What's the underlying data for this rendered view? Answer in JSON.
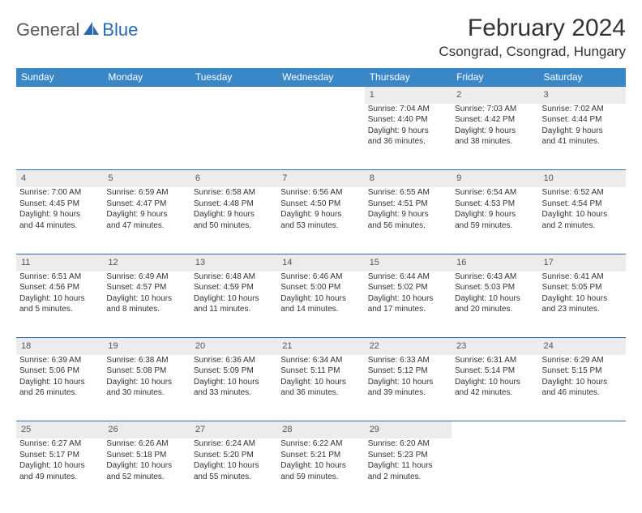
{
  "brand": {
    "part1": "General",
    "part2": "Blue"
  },
  "title": "February 2024",
  "location": "Csongrad, Csongrad, Hungary",
  "colors": {
    "header_bg": "#3a87c8",
    "header_text": "#ffffff",
    "rule": "#2a6ab0",
    "daynum_bg": "#ececec",
    "text": "#333333"
  },
  "day_headers": [
    "Sunday",
    "Monday",
    "Tuesday",
    "Wednesday",
    "Thursday",
    "Friday",
    "Saturday"
  ],
  "weeks": [
    {
      "nums": [
        "",
        "",
        "",
        "",
        "1",
        "2",
        "3"
      ],
      "cells": [
        null,
        null,
        null,
        null,
        {
          "sunrise": "Sunrise: 7:04 AM",
          "sunset": "Sunset: 4:40 PM",
          "day1": "Daylight: 9 hours",
          "day2": "and 36 minutes."
        },
        {
          "sunrise": "Sunrise: 7:03 AM",
          "sunset": "Sunset: 4:42 PM",
          "day1": "Daylight: 9 hours",
          "day2": "and 38 minutes."
        },
        {
          "sunrise": "Sunrise: 7:02 AM",
          "sunset": "Sunset: 4:44 PM",
          "day1": "Daylight: 9 hours",
          "day2": "and 41 minutes."
        }
      ]
    },
    {
      "nums": [
        "4",
        "5",
        "6",
        "7",
        "8",
        "9",
        "10"
      ],
      "cells": [
        {
          "sunrise": "Sunrise: 7:00 AM",
          "sunset": "Sunset: 4:45 PM",
          "day1": "Daylight: 9 hours",
          "day2": "and 44 minutes."
        },
        {
          "sunrise": "Sunrise: 6:59 AM",
          "sunset": "Sunset: 4:47 PM",
          "day1": "Daylight: 9 hours",
          "day2": "and 47 minutes."
        },
        {
          "sunrise": "Sunrise: 6:58 AM",
          "sunset": "Sunset: 4:48 PM",
          "day1": "Daylight: 9 hours",
          "day2": "and 50 minutes."
        },
        {
          "sunrise": "Sunrise: 6:56 AM",
          "sunset": "Sunset: 4:50 PM",
          "day1": "Daylight: 9 hours",
          "day2": "and 53 minutes."
        },
        {
          "sunrise": "Sunrise: 6:55 AM",
          "sunset": "Sunset: 4:51 PM",
          "day1": "Daylight: 9 hours",
          "day2": "and 56 minutes."
        },
        {
          "sunrise": "Sunrise: 6:54 AM",
          "sunset": "Sunset: 4:53 PM",
          "day1": "Daylight: 9 hours",
          "day2": "and 59 minutes."
        },
        {
          "sunrise": "Sunrise: 6:52 AM",
          "sunset": "Sunset: 4:54 PM",
          "day1": "Daylight: 10 hours",
          "day2": "and 2 minutes."
        }
      ]
    },
    {
      "nums": [
        "11",
        "12",
        "13",
        "14",
        "15",
        "16",
        "17"
      ],
      "cells": [
        {
          "sunrise": "Sunrise: 6:51 AM",
          "sunset": "Sunset: 4:56 PM",
          "day1": "Daylight: 10 hours",
          "day2": "and 5 minutes."
        },
        {
          "sunrise": "Sunrise: 6:49 AM",
          "sunset": "Sunset: 4:57 PM",
          "day1": "Daylight: 10 hours",
          "day2": "and 8 minutes."
        },
        {
          "sunrise": "Sunrise: 6:48 AM",
          "sunset": "Sunset: 4:59 PM",
          "day1": "Daylight: 10 hours",
          "day2": "and 11 minutes."
        },
        {
          "sunrise": "Sunrise: 6:46 AM",
          "sunset": "Sunset: 5:00 PM",
          "day1": "Daylight: 10 hours",
          "day2": "and 14 minutes."
        },
        {
          "sunrise": "Sunrise: 6:44 AM",
          "sunset": "Sunset: 5:02 PM",
          "day1": "Daylight: 10 hours",
          "day2": "and 17 minutes."
        },
        {
          "sunrise": "Sunrise: 6:43 AM",
          "sunset": "Sunset: 5:03 PM",
          "day1": "Daylight: 10 hours",
          "day2": "and 20 minutes."
        },
        {
          "sunrise": "Sunrise: 6:41 AM",
          "sunset": "Sunset: 5:05 PM",
          "day1": "Daylight: 10 hours",
          "day2": "and 23 minutes."
        }
      ]
    },
    {
      "nums": [
        "18",
        "19",
        "20",
        "21",
        "22",
        "23",
        "24"
      ],
      "cells": [
        {
          "sunrise": "Sunrise: 6:39 AM",
          "sunset": "Sunset: 5:06 PM",
          "day1": "Daylight: 10 hours",
          "day2": "and 26 minutes."
        },
        {
          "sunrise": "Sunrise: 6:38 AM",
          "sunset": "Sunset: 5:08 PM",
          "day1": "Daylight: 10 hours",
          "day2": "and 30 minutes."
        },
        {
          "sunrise": "Sunrise: 6:36 AM",
          "sunset": "Sunset: 5:09 PM",
          "day1": "Daylight: 10 hours",
          "day2": "and 33 minutes."
        },
        {
          "sunrise": "Sunrise: 6:34 AM",
          "sunset": "Sunset: 5:11 PM",
          "day1": "Daylight: 10 hours",
          "day2": "and 36 minutes."
        },
        {
          "sunrise": "Sunrise: 6:33 AM",
          "sunset": "Sunset: 5:12 PM",
          "day1": "Daylight: 10 hours",
          "day2": "and 39 minutes."
        },
        {
          "sunrise": "Sunrise: 6:31 AM",
          "sunset": "Sunset: 5:14 PM",
          "day1": "Daylight: 10 hours",
          "day2": "and 42 minutes."
        },
        {
          "sunrise": "Sunrise: 6:29 AM",
          "sunset": "Sunset: 5:15 PM",
          "day1": "Daylight: 10 hours",
          "day2": "and 46 minutes."
        }
      ]
    },
    {
      "nums": [
        "25",
        "26",
        "27",
        "28",
        "29",
        "",
        ""
      ],
      "cells": [
        {
          "sunrise": "Sunrise: 6:27 AM",
          "sunset": "Sunset: 5:17 PM",
          "day1": "Daylight: 10 hours",
          "day2": "and 49 minutes."
        },
        {
          "sunrise": "Sunrise: 6:26 AM",
          "sunset": "Sunset: 5:18 PM",
          "day1": "Daylight: 10 hours",
          "day2": "and 52 minutes."
        },
        {
          "sunrise": "Sunrise: 6:24 AM",
          "sunset": "Sunset: 5:20 PM",
          "day1": "Daylight: 10 hours",
          "day2": "and 55 minutes."
        },
        {
          "sunrise": "Sunrise: 6:22 AM",
          "sunset": "Sunset: 5:21 PM",
          "day1": "Daylight: 10 hours",
          "day2": "and 59 minutes."
        },
        {
          "sunrise": "Sunrise: 6:20 AM",
          "sunset": "Sunset: 5:23 PM",
          "day1": "Daylight: 11 hours",
          "day2": "and 2 minutes."
        },
        null,
        null
      ]
    }
  ]
}
